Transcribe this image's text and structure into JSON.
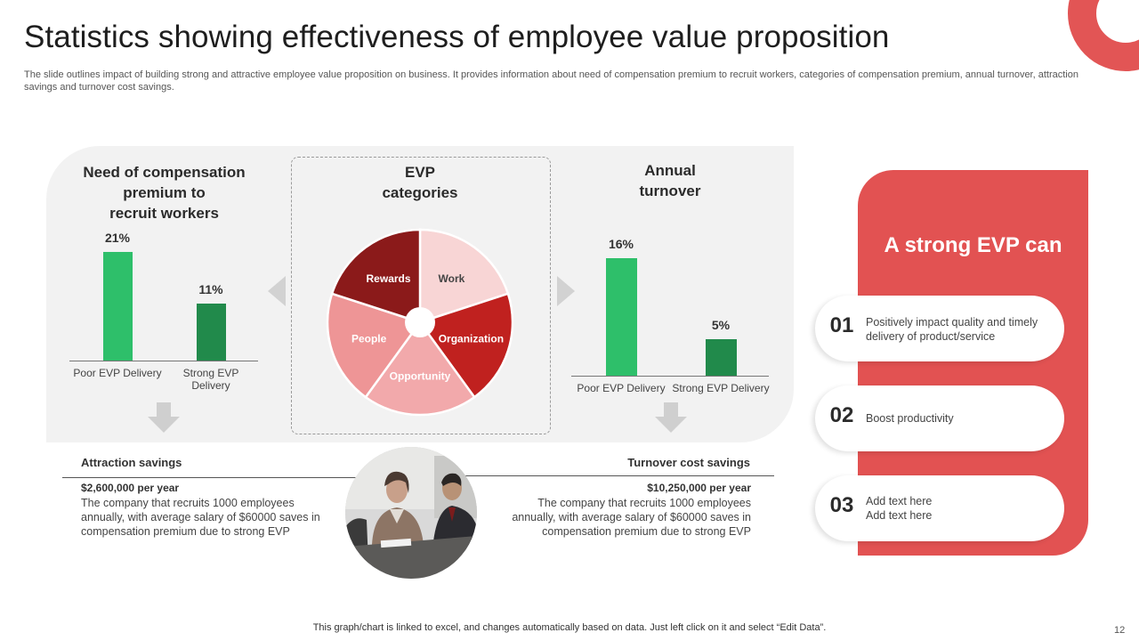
{
  "header": {
    "title": "Statistics showing effectiveness of employee value proposition",
    "subtitle": "The slide outlines impact of building strong and attractive employee value proposition on business. It provides information about need of compensation premium to recruit workers, categories of compensation premium, annual turnover, attraction savings and turnover cost savings."
  },
  "colors": {
    "accent_red": "#e25252",
    "bar_light_green": "#2ebf6a",
    "bar_dark_green": "#218a4b",
    "panel_grey": "#f2f2f2"
  },
  "chart_data": [
    {
      "type": "bar",
      "title": "Need of compensation premium to recruit workers",
      "title_lines": [
        "Need of compensation",
        "premium to",
        "recruit workers"
      ],
      "categories": [
        "Poor EVP Delivery",
        "Strong EVP Delivery"
      ],
      "category_lines": [
        [
          "Poor EVP Delivery"
        ],
        [
          "Strong EVP",
          "Delivery"
        ]
      ],
      "values": [
        21,
        11
      ],
      "data_labels": [
        "21%",
        "11%"
      ],
      "ylim": [
        0,
        22
      ],
      "xlabel": "",
      "ylabel": ""
    },
    {
      "type": "pie",
      "title": "EVP categories",
      "title_lines": [
        "EVP",
        "categories"
      ],
      "labels": [
        "Work",
        "Organization",
        "Opportunity",
        "People",
        "Rewards"
      ],
      "values": [
        20,
        20,
        20,
        20,
        20
      ],
      "colors": [
        "#f8d5d5",
        "#c0211f",
        "#f2a9ab",
        "#ee9596",
        "#8b1a1a"
      ]
    },
    {
      "type": "bar",
      "title": "Annual turnover",
      "title_lines": [
        "Annual",
        "turnover"
      ],
      "categories": [
        "Poor EVP Delivery",
        "Strong EVP Delivery"
      ],
      "category_lines": [
        [
          "Poor EVP Delivery"
        ],
        [
          "Strong EVP Delivery"
        ]
      ],
      "values": [
        16,
        5
      ],
      "data_labels": [
        "16%",
        "5%"
      ],
      "ylim": [
        0,
        17.5
      ],
      "xlabel": "",
      "ylabel": ""
    }
  ],
  "savings": {
    "attraction": {
      "heading": "Attraction savings",
      "amount": "$2,600,000  per year",
      "text": "The company that recruits 1000 employees annually, with average salary of $60000 saves in compensation premium due to strong EVP"
    },
    "turnover": {
      "heading": "Turnover cost savings",
      "amount": "$10,250,000  per year",
      "text": "The company that recruits 1000 employees annually, with average salary of $60000 saves in compensation premium due to strong EVP"
    }
  },
  "evp_panel": {
    "title": "A strong EVP can",
    "items": [
      {
        "number": "01",
        "text": "Positively impact quality and timely delivery of product/service"
      },
      {
        "number": "02",
        "text": "Boost productivity"
      },
      {
        "number": "03",
        "text": "Add text here\nAdd text here"
      }
    ]
  },
  "footer": {
    "note": "This graph/chart is linked to excel, and changes automatically based on data. Just left click on it and select “Edit Data”.",
    "page_number": "12"
  }
}
